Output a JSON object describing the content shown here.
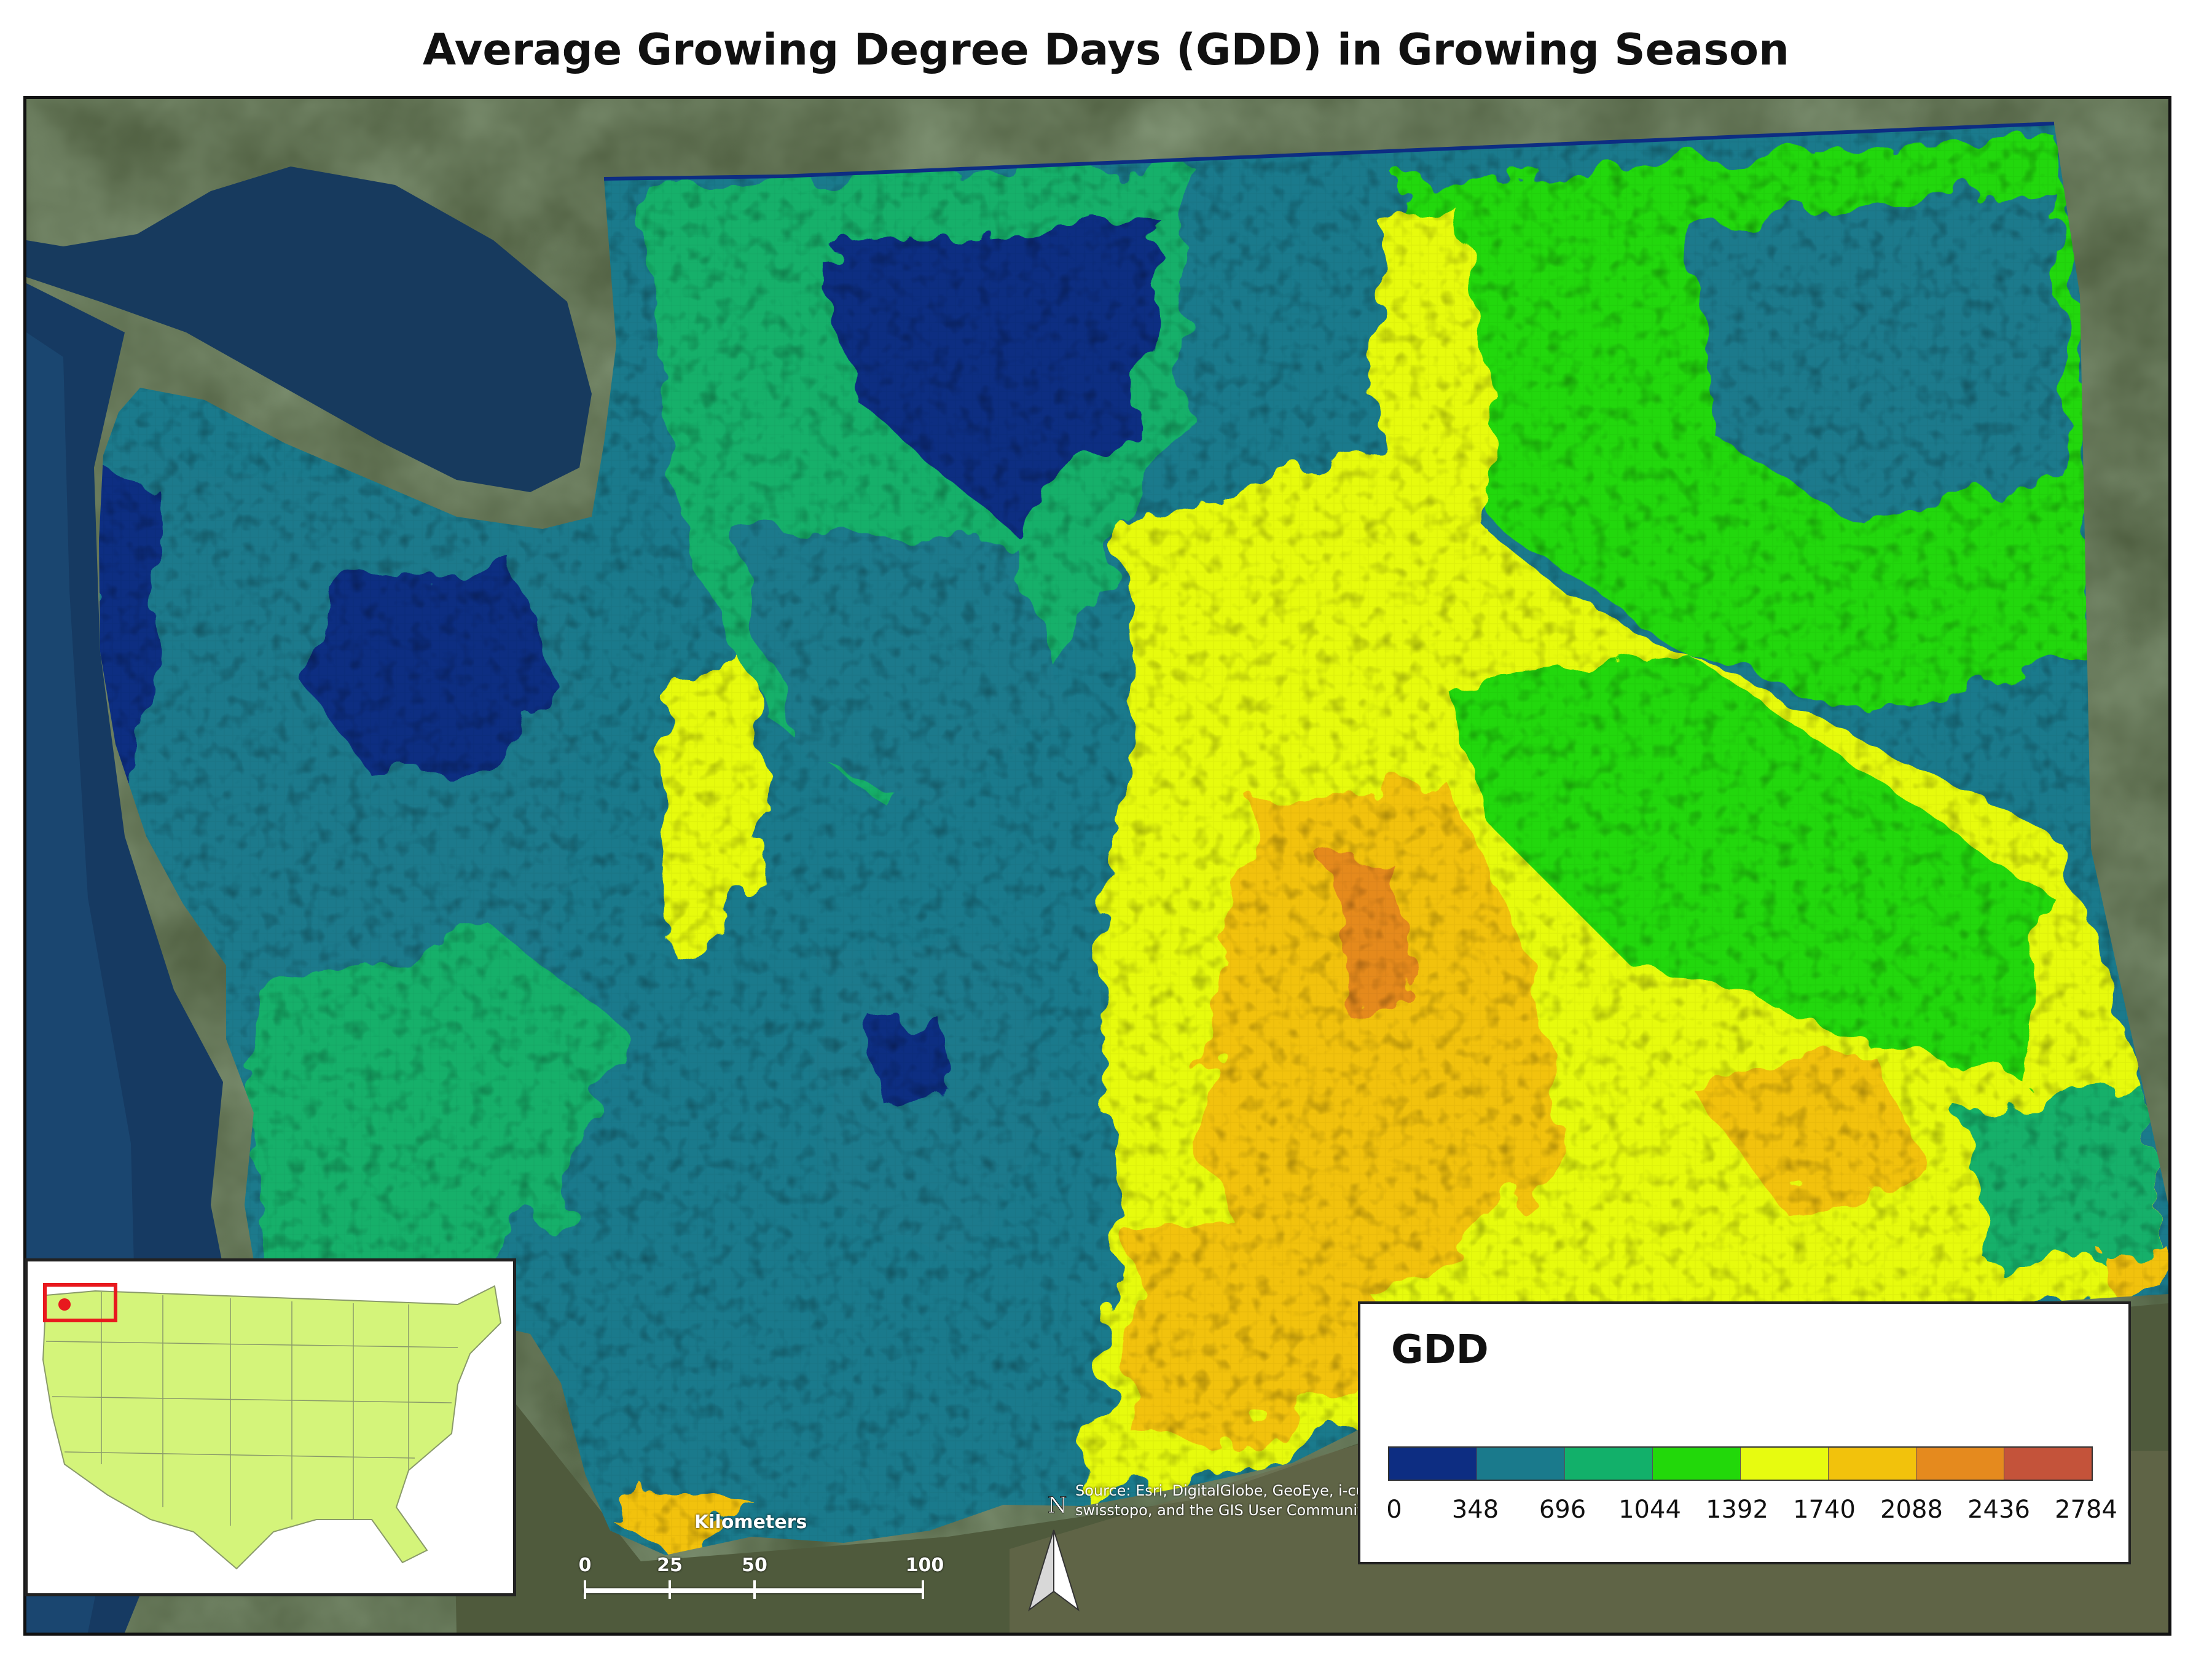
{
  "title": "Average Growing Degree Days (GDD) in Growing Season",
  "legend": {
    "title": "GDD",
    "colors": [
      "#0d2d82",
      "#1a7a8c",
      "#12b06a",
      "#22d80a",
      "#e7fb10",
      "#f2c20c",
      "#e58a1e",
      "#c4533a"
    ],
    "ticks": [
      "0",
      "348",
      "696",
      "1044",
      "1392",
      "1740",
      "2088",
      "2436",
      "2784"
    ]
  },
  "scalebar": {
    "title": "Kilometers",
    "labels": [
      "0",
      "25",
      "50",
      "100"
    ]
  },
  "north_arrow": {
    "label": "N",
    "icon": "north-arrow-icon"
  },
  "attribution": "Source: Esri, DigitalGlobe, GeoEye, i-cubed, Earthstar Geographics, CNES/Airbus DS, USDA, USGS, AEX, Getmapping, Aerogrid, IGN, IGP, swisstopo, and the GIS User Community",
  "inset_map": {
    "highlight": "Washington",
    "highlight_color": "#e8191e",
    "fill_color": "#d4f47a"
  }
}
